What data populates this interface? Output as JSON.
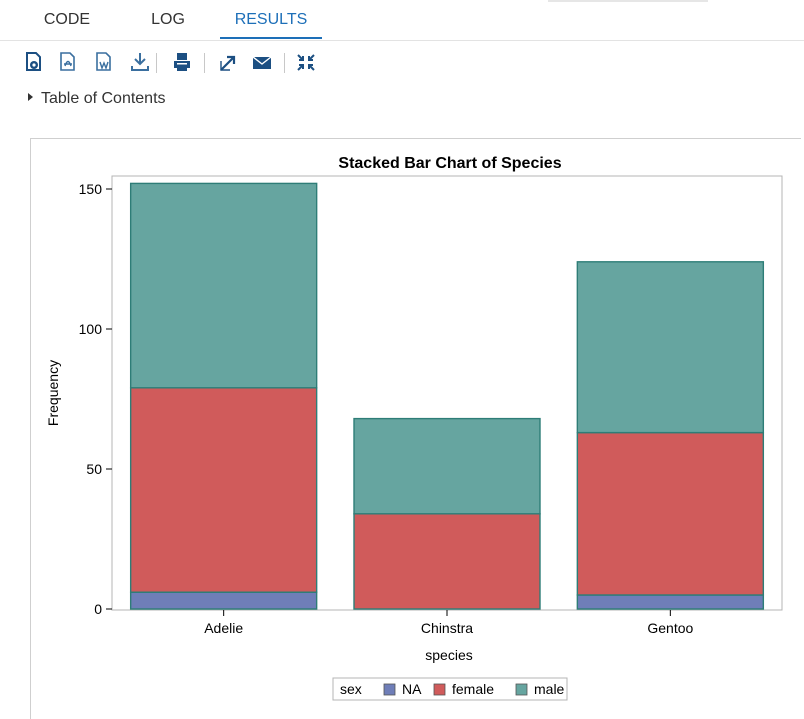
{
  "tabs": [
    {
      "label": "CODE",
      "active": false
    },
    {
      "label": "LOG",
      "active": false
    },
    {
      "label": "RESULTS",
      "active": true
    }
  ],
  "toolbar": {
    "icons": [
      "open-html-icon",
      "download-pdf-icon",
      "download-word-icon",
      "download-icon",
      "print-icon",
      "open-new-window-icon",
      "email-icon",
      "collapse-icon"
    ]
  },
  "toc": {
    "label": "Table of Contents"
  },
  "chart_data": {
    "type": "bar",
    "stacked": true,
    "title": "Stacked Bar Chart of Species",
    "xlabel": "species",
    "ylabel": "Frequency",
    "categories": [
      "Adelie",
      "Chinstra",
      "Gentoo"
    ],
    "ylim": [
      0,
      152
    ],
    "yticks": [
      0,
      50,
      100,
      150
    ],
    "grid": false,
    "legend": {
      "title": "sex",
      "position": "bottom-center"
    },
    "series": [
      {
        "name": "NA",
        "color": "#6f7eb8",
        "values": [
          6,
          0,
          5
        ]
      },
      {
        "name": "female",
        "color": "#d05b5b",
        "values": [
          73,
          34,
          58
        ]
      },
      {
        "name": "male",
        "color": "#66a5a0",
        "values": [
          73,
          34,
          61
        ]
      }
    ]
  }
}
